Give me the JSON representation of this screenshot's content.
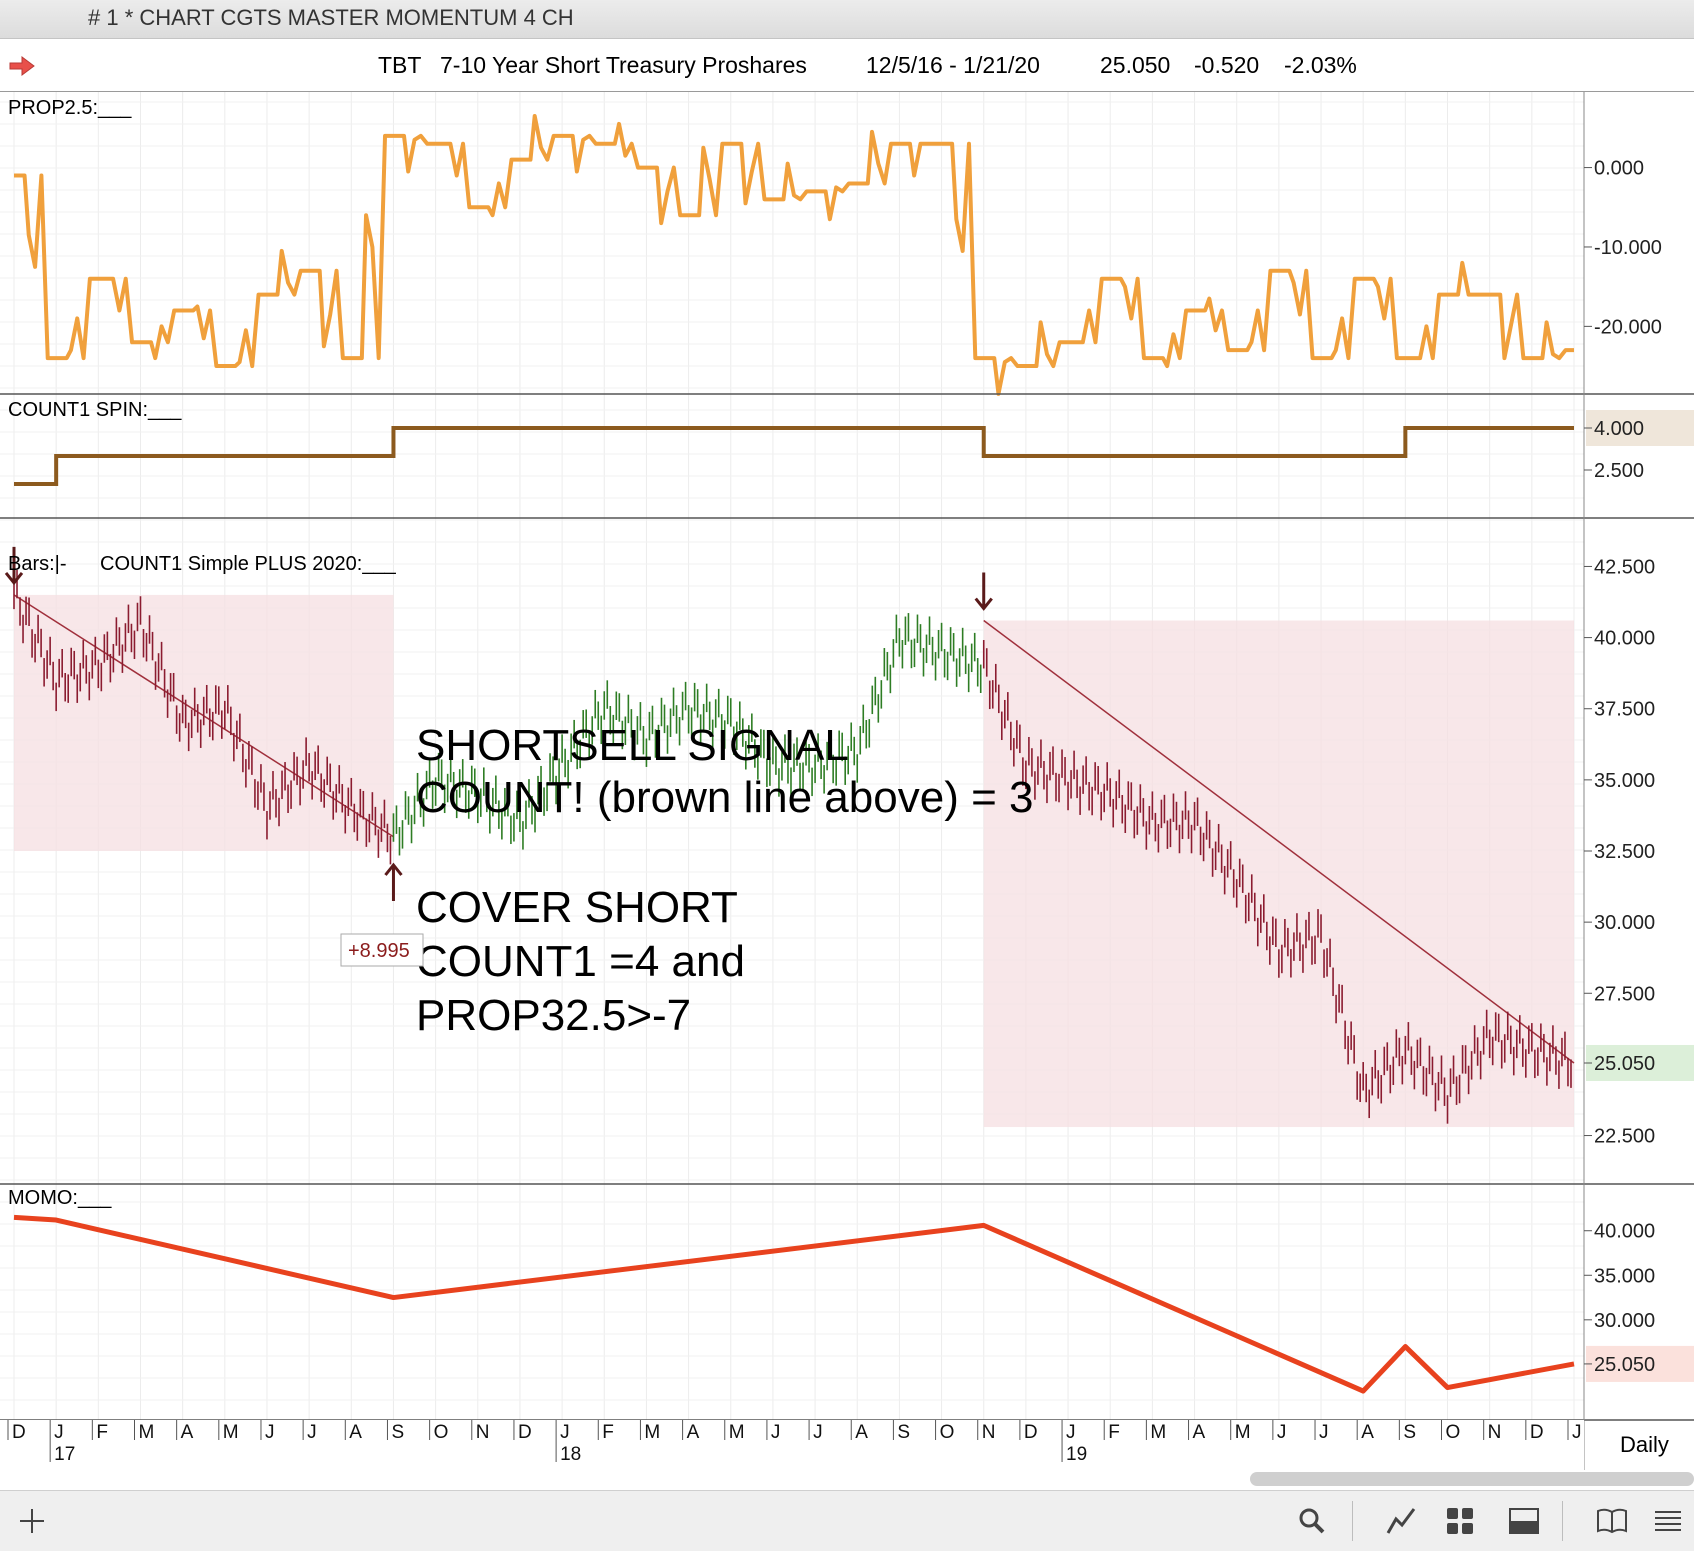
{
  "window": {
    "title": "# 1 * CHART CGTS MASTER MOMENTUM 4 CH"
  },
  "header": {
    "symbol": "TBT",
    "description": "7-10 Year Short Treasury Proshares",
    "date_range": "12/5/16 - 1/21/20",
    "last": "25.050",
    "change": "-0.520",
    "change_pct": "-2.03%"
  },
  "panels": {
    "prop": {
      "label": "PROP2.5:___",
      "color": "#f0a03c",
      "ticks": [
        "0.000",
        "-10.000",
        "-20.000"
      ]
    },
    "count": {
      "label": "COUNT1 SPIN:___",
      "color": "#8c5a1e",
      "ticks": [
        "4.000",
        "2.500"
      ],
      "current": "4.000"
    },
    "price": {
      "label_bars": "Bars:|-",
      "label_study": "COUNT1 Simple PLUS 2020:___",
      "ticks": [
        "42.500",
        "40.000",
        "37.500",
        "35.000",
        "32.500",
        "30.000",
        "27.500",
        "25.050",
        "22.500"
      ],
      "current": "25.050"
    },
    "momo": {
      "label": "MOMO:___",
      "color": "#e8421e",
      "ticks": [
        "40.000",
        "35.000",
        "30.000",
        "25.050"
      ],
      "current": "25.050"
    }
  },
  "annotations": {
    "shortsell_line1": "SHORTSELL SIGNAL",
    "shortsell_line2": "COUNT! (brown line above) = 3",
    "cover_line1": "COVER SHORT",
    "cover_line2": "COUNT1 =4 and",
    "cover_line3": "PROP32.5>-7",
    "trade_result": "+8.995"
  },
  "xaxis": {
    "months": [
      "D",
      "J",
      "F",
      "M",
      "A",
      "M",
      "J",
      "J",
      "A",
      "S",
      "O",
      "N",
      "D",
      "J",
      "F",
      "M",
      "A",
      "M",
      "J",
      "J",
      "A",
      "S",
      "O",
      "N",
      "D",
      "J",
      "F",
      "M",
      "A",
      "M",
      "J",
      "J",
      "A",
      "S",
      "O",
      "N",
      "D",
      "J"
    ],
    "years": [
      "17",
      "18",
      "19"
    ],
    "period": "Daily"
  },
  "toolbar": {
    "icons": [
      "add-icon",
      "search-icon",
      "line-chart-icon",
      "grid-icon",
      "window-icon",
      "book-icon",
      "menu-icon"
    ]
  },
  "chart_data": [
    {
      "type": "line",
      "title": "PROP2.5",
      "x": [
        "2016-12",
        "2017-01",
        "2017-02",
        "2017-03",
        "2017-04",
        "2017-05",
        "2017-06",
        "2017-07",
        "2017-08",
        "2017-09",
        "2017-10",
        "2017-11",
        "2017-12",
        "2018-01",
        "2018-02",
        "2018-03",
        "2018-04",
        "2018-05",
        "2018-06",
        "2018-07",
        "2018-08",
        "2018-09",
        "2018-10",
        "2018-11",
        "2018-12",
        "2019-01",
        "2019-02",
        "2019-03",
        "2019-04",
        "2019-05",
        "2019-06",
        "2019-07",
        "2019-08",
        "2019-09",
        "2019-10",
        "2019-11",
        "2019-12",
        "2020-01"
      ],
      "values": [
        -1,
        -24,
        -14,
        -22,
        -18,
        -25,
        -16,
        -13,
        -24,
        4,
        3,
        -5,
        1,
        4,
        3,
        0,
        -6,
        3,
        -4,
        -3,
        -2,
        3,
        3,
        -24,
        -25,
        -22,
        -14,
        -24,
        -18,
        -23,
        -13,
        -24,
        -14,
        -24,
        -16,
        -16,
        -24,
        -23
      ],
      "ylim": [
        -26,
        7
      ]
    },
    {
      "type": "line",
      "title": "COUNT1 SPIN",
      "x": [
        "2016-12",
        "2017-01",
        "2017-09",
        "2018-11",
        "2019-09",
        "2020-01"
      ],
      "values": [
        2,
        3,
        4,
        3,
        4,
        4
      ],
      "ylim": [
        1.5,
        4.5
      ]
    },
    {
      "type": "line",
      "title": "TBT daily price",
      "x": [
        "2016-12",
        "2017-01",
        "2017-02",
        "2017-03",
        "2017-04",
        "2017-05",
        "2017-06",
        "2017-07",
        "2017-08",
        "2017-09",
        "2017-10",
        "2017-11",
        "2017-12",
        "2018-01",
        "2018-02",
        "2018-03",
        "2018-04",
        "2018-05",
        "2018-06",
        "2018-07",
        "2018-08",
        "2018-09",
        "2018-10",
        "2018-11",
        "2018-12",
        "2019-01",
        "2019-02",
        "2019-03",
        "2019-04",
        "2019-05",
        "2019-06",
        "2019-07",
        "2019-08",
        "2019-09",
        "2019-10",
        "2019-11",
        "2019-12",
        "2020-01"
      ],
      "values": [
        41.5,
        38.5,
        39.0,
        40.5,
        37.0,
        37.5,
        34.0,
        35.5,
        34.0,
        33.0,
        35.0,
        34.5,
        33.5,
        35.5,
        37.5,
        36.5,
        37.5,
        37.0,
        35.5,
        35.5,
        36.0,
        40.0,
        39.5,
        39.0,
        35.5,
        35.0,
        34.5,
        33.5,
        33.5,
        31.5,
        29.0,
        29.5,
        24.0,
        25.5,
        24.0,
        26.0,
        25.5,
        25.05
      ],
      "ylim": [
        21.5,
        43.5
      ],
      "signals": [
        {
          "x": "2016-12",
          "type": "short",
          "price": 41.5
        },
        {
          "x": "2017-09",
          "type": "cover",
          "price": 32.5
        },
        {
          "x": "2018-11",
          "type": "short",
          "price": 40.6
        }
      ]
    },
    {
      "type": "line",
      "title": "MOMO",
      "x": [
        "2016-12",
        "2017-01",
        "2017-09",
        "2018-11",
        "2019-08",
        "2019-09",
        "2019-10",
        "2020-01"
      ],
      "values": [
        41.5,
        41.2,
        32.5,
        40.6,
        22.0,
        27.0,
        22.4,
        25.05
      ],
      "ylim": [
        21,
        43
      ]
    }
  ]
}
